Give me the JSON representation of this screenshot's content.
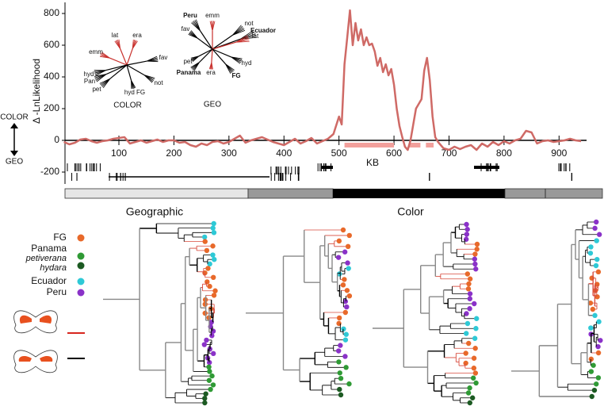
{
  "chart_data": {
    "type": "line",
    "y_label": "Δ -LnLikelihood",
    "x_label": "KB",
    "annotations": {
      "up": "COLOR",
      "down": "GEO"
    },
    "x": [
      0,
      10,
      20,
      30,
      40,
      50,
      60,
      70,
      80,
      90,
      100,
      110,
      120,
      130,
      140,
      150,
      160,
      170,
      180,
      190,
      200,
      210,
      220,
      230,
      240,
      250,
      260,
      270,
      280,
      290,
      300,
      310,
      320,
      330,
      340,
      350,
      360,
      370,
      380,
      390,
      400,
      410,
      420,
      430,
      440,
      450,
      460,
      470,
      480,
      490,
      500,
      505,
      510,
      515,
      520,
      525,
      530,
      535,
      540,
      545,
      550,
      555,
      560,
      565,
      570,
      575,
      580,
      585,
      590,
      595,
      600,
      605,
      610,
      615,
      620,
      625,
      630,
      640,
      650,
      655,
      660,
      665,
      670,
      675,
      680,
      690,
      700,
      710,
      720,
      730,
      740,
      750,
      760,
      770,
      780,
      790,
      800,
      810,
      820,
      830,
      840,
      850,
      860,
      870,
      880,
      890,
      900,
      910,
      920,
      930,
      940
    ],
    "series": [
      {
        "color": "#cf6a66",
        "values": [
          -10,
          -25,
          -15,
          5,
          10,
          -5,
          -15,
          -5,
          0,
          10,
          15,
          20,
          -20,
          -10,
          0,
          -15,
          -5,
          5,
          -10,
          0,
          0,
          -15,
          -10,
          -30,
          -40,
          -20,
          -30,
          -10,
          -5,
          -20,
          -10,
          10,
          30,
          -15,
          0,
          10,
          20,
          5,
          -10,
          -20,
          -30,
          -10,
          10,
          -20,
          -5,
          15,
          -20,
          -5,
          10,
          40,
          150,
          100,
          480,
          650,
          820,
          600,
          740,
          630,
          700,
          600,
          650,
          600,
          610,
          560,
          470,
          520,
          430,
          480,
          410,
          450,
          350,
          200,
          90,
          20,
          -40,
          -60,
          0,
          200,
          260,
          440,
          520,
          380,
          150,
          20,
          -10,
          -50,
          -60,
          -40,
          -55,
          -40,
          -30,
          -60,
          -20,
          -40,
          -10,
          -30,
          -5,
          -20,
          0,
          10,
          60,
          50,
          -20,
          -5,
          0,
          -10,
          -5,
          0,
          10,
          0,
          -5
        ]
      }
    ],
    "highlight_regions": {
      "color": "#f2a09c",
      "ranges": [
        [
          510,
          600
        ],
        [
          628,
          648
        ],
        [
          658,
          672
        ]
      ]
    },
    "xlim": [
      0,
      950
    ],
    "ylim": [
      -275,
      870
    ],
    "xticks": [
      100,
      200,
      300,
      400,
      500,
      600,
      700,
      800,
      900
    ],
    "yticks": [
      -200,
      0,
      200,
      400,
      600,
      800
    ]
  },
  "insets": {
    "color_tree": {
      "caption": "COLOR",
      "labels": [
        "lat",
        "era",
        "emm",
        "fav",
        "hyd",
        "Pan",
        "pet",
        "hyd FG",
        "not"
      ]
    },
    "geo_tree": {
      "caption": "GEO",
      "labels": [
        "Peru",
        "emm",
        "fav",
        "not",
        "Ecuador",
        "lat",
        "hyd",
        "pet",
        "Panama",
        "era",
        "FG"
      ]
    }
  },
  "panels": {
    "left": "Geographic",
    "right": "Color"
  },
  "legend": [
    {
      "label": "FG",
      "color": "#e8692a"
    },
    {
      "label": "Panama",
      "sub": [
        {
          "label": "petiverana",
          "color": "#2f9a35"
        },
        {
          "label": "hydara",
          "color": "#1c5a22"
        }
      ]
    },
    {
      "label": "Ecuador",
      "color": "#2ec9d6"
    },
    {
      "label": "Peru",
      "color": "#8a32c8"
    }
  ]
}
